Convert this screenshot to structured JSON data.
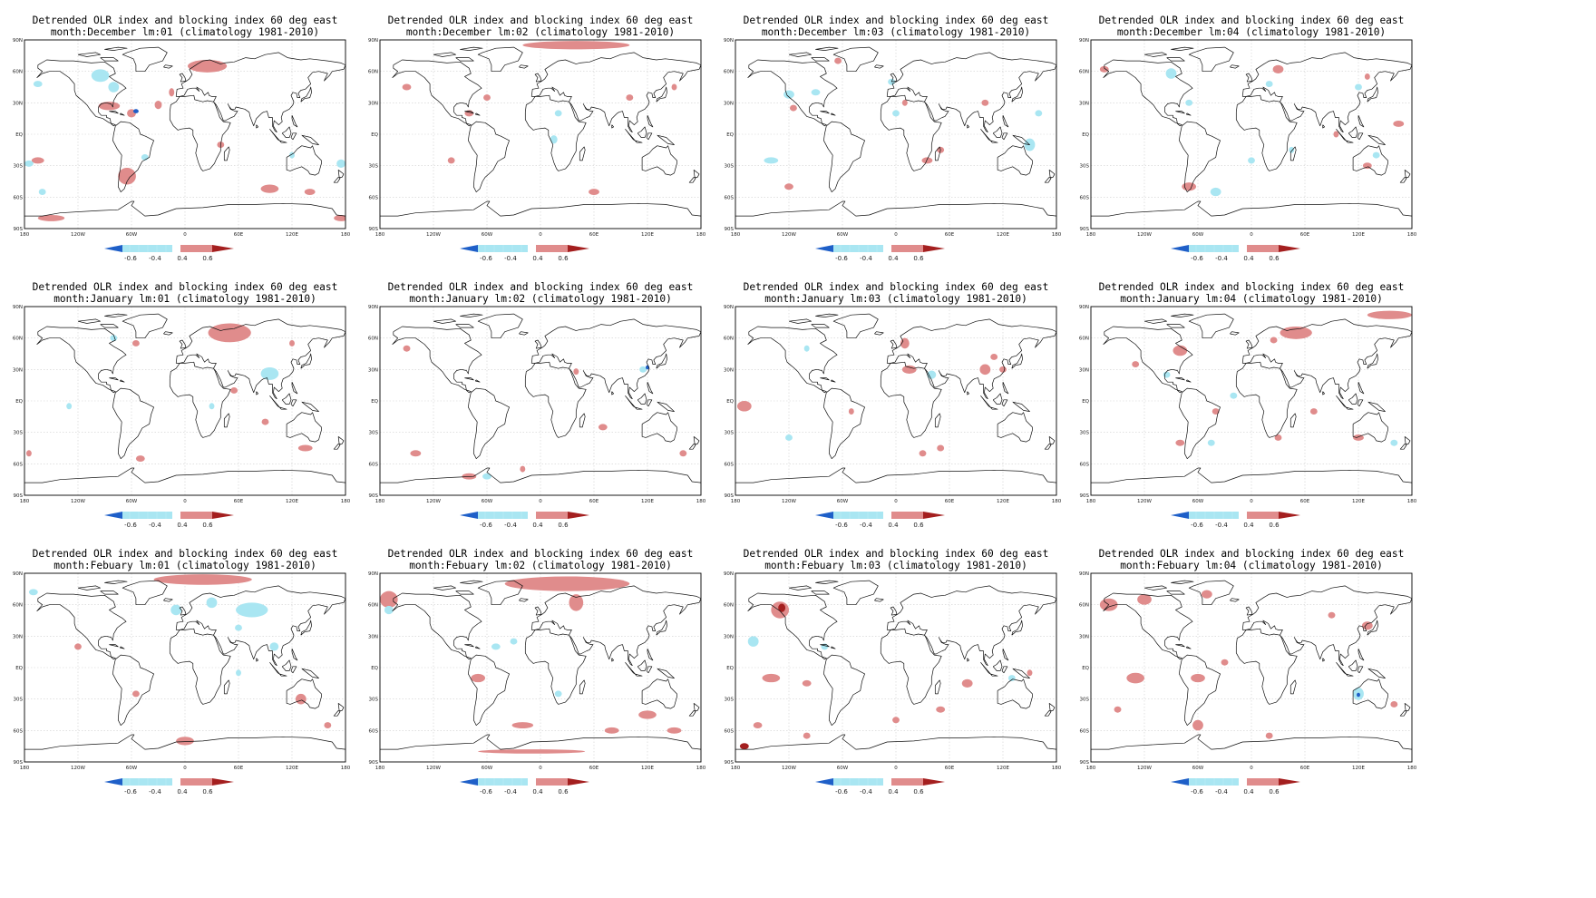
{
  "figure": {
    "title_line1": "Detrended OLR index and blocking index 60 deg east",
    "rows": [
      {
        "month": "December",
        "panels": [
          "month:December lm:01 (climatology 1981-2010)",
          "month:December lm:02 (climatology 1981-2010)",
          "month:December lm:03 (climatology 1981-2010)",
          "month:December lm:04 (climatology 1981-2010)"
        ]
      },
      {
        "month": "January",
        "panels": [
          "month:January lm:01 (climatology 1981-2010)",
          "month:January lm:02 (climatology 1981-2010)",
          "month:January lm:03 (climatology 1981-2010)",
          "month:January lm:04 (climatology 1981-2010)"
        ]
      },
      {
        "month": "Febuary",
        "panels": [
          "month:Febuary lm:01 (climatology 1981-2010)",
          "month:Febuary lm:02 (climatology 1981-2010)",
          "month:Febuary lm:03 (climatology 1981-2010)",
          "month:Febuary lm:04 (climatology 1981-2010)"
        ]
      }
    ]
  },
  "axes": {
    "lat_labels": [
      "90N",
      "60N",
      "30N",
      "EQ",
      "30S",
      "60S",
      "90S"
    ],
    "lon_labels": [
      "180",
      "120W",
      "60W",
      "0",
      "60E",
      "120E",
      "180"
    ]
  },
  "colorbar": {
    "labels": [
      "-0.6",
      "-0.4",
      "0.4",
      "0.6"
    ],
    "colors": {
      "strong_negative": "#1e5fc8",
      "negative": "#a9e6f2",
      "positive": "#e08c8c",
      "strong_positive": "#a41f1f"
    }
  }
}
